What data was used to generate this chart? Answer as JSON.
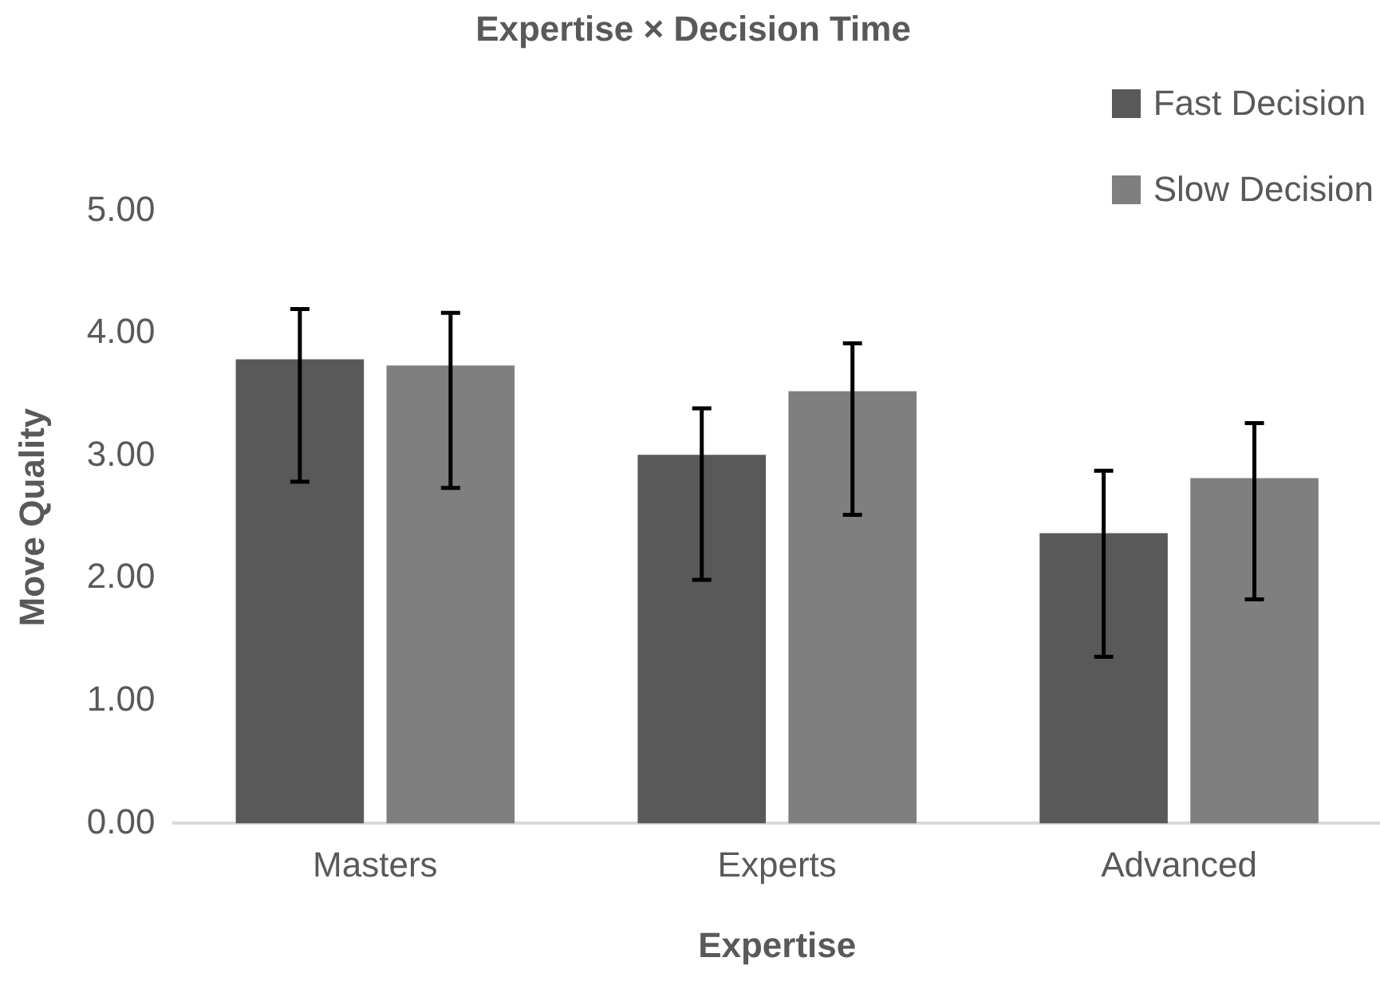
{
  "chart_data": {
    "type": "bar",
    "title": "Expertise × Decision Time",
    "xlabel": "Expertise",
    "ylabel": "Move Quality",
    "categories": [
      "Masters",
      "Experts",
      "Advanced"
    ],
    "series": [
      {
        "name": "Fast Decision",
        "color": "#595959",
        "values": [
          3.79,
          3.01,
          2.37
        ],
        "errors": [
          [
            2.79,
            4.2
          ],
          [
            1.99,
            3.39
          ],
          [
            1.36,
            2.88
          ]
        ]
      },
      {
        "name": "Slow Decision",
        "color": "#7f7f7f",
        "values": [
          3.74,
          3.53,
          2.82
        ],
        "errors": [
          [
            2.74,
            4.17
          ],
          [
            2.52,
            3.92
          ],
          [
            1.83,
            3.27
          ]
        ]
      }
    ],
    "ylim": [
      0,
      5
    ],
    "yticks": [
      {
        "value": 0,
        "label": "0.00"
      },
      {
        "value": 1,
        "label": "1.00"
      },
      {
        "value": 2,
        "label": "2.00"
      },
      {
        "value": 3,
        "label": "3.00"
      },
      {
        "value": 4,
        "label": "4.00"
      },
      {
        "value": 5,
        "label": "5.00"
      }
    ],
    "grid": false,
    "legend": "top right"
  }
}
